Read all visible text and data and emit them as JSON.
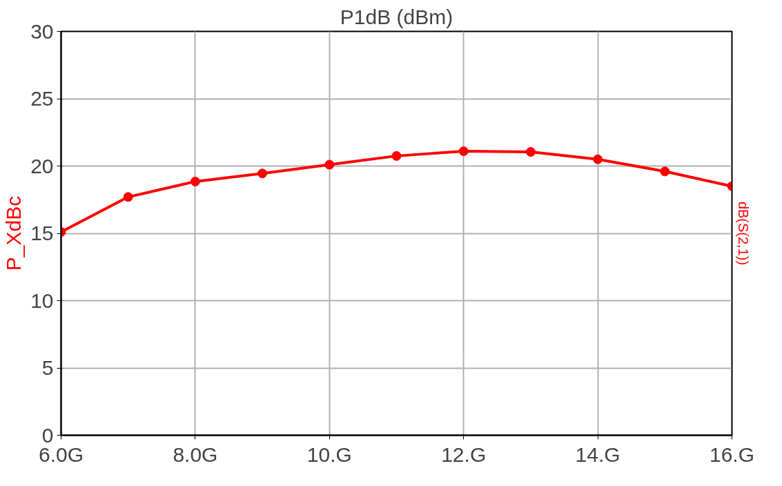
{
  "chart_data": {
    "type": "line",
    "title": "P1dB (dBm)",
    "ylabel": "P_XdBc",
    "y2label": "dB(S(2,1))",
    "x": [
      6,
      7,
      8,
      9,
      10,
      11,
      12,
      13,
      14,
      15,
      16
    ],
    "series": [
      {
        "color": "#ff0000",
        "values": [
          15.1,
          17.7,
          18.85,
          19.45,
          20.1,
          20.75,
          21.1,
          21.05,
          20.5,
          19.6,
          18.5
        ]
      }
    ],
    "xlim": [
      6,
      16
    ],
    "xticks": [
      {
        "value": 6,
        "label": "6.0G"
      },
      {
        "value": 8,
        "label": "8.0G"
      },
      {
        "value": 10,
        "label": "10.G"
      },
      {
        "value": 12,
        "label": "12.G"
      },
      {
        "value": 14,
        "label": "14.G"
      },
      {
        "value": 16,
        "label": "16.G"
      }
    ],
    "ylim": [
      0,
      30
    ],
    "yticks": [
      0,
      5,
      10,
      15,
      20,
      25,
      30
    ],
    "grid": true,
    "marker": "circle",
    "line_style": "solid"
  }
}
